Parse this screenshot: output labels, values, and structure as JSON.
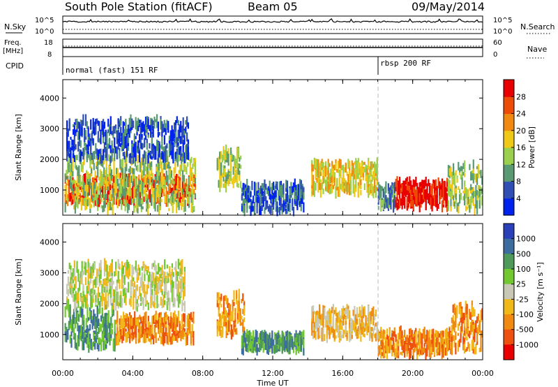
{
  "header": {
    "station": "South Pole Station (fitACF)",
    "beam": "Beam 05",
    "date": "09/May/2014"
  },
  "status_panels": {
    "nsky": {
      "left_label": "N.Sky",
      "right_label": "N.Search",
      "left_ticks": [
        "10^5",
        "10^0"
      ],
      "right_ticks": [
        "10^5",
        "10^0"
      ]
    },
    "freq": {
      "left_label_1": "Freq.",
      "left_label_2": "[MHz]",
      "right_label": "Nave",
      "left_ticks": [
        "18",
        "8"
      ],
      "right_ticks": [
        "60",
        "0"
      ]
    },
    "cpid": {
      "label": "CPID",
      "programs": [
        "normal (fast) 151 RF",
        "rbsp 200 RF"
      ]
    }
  },
  "colors": {
    "power": [
      "#0022ee",
      "#2f4fb4",
      "#5a9a72",
      "#9bd04e",
      "#f0c818",
      "#f08a10",
      "#ee4a08",
      "#e80000"
    ],
    "velocity": [
      "#2a40b8",
      "#3d6c9e",
      "#4f9a5a",
      "#72c830",
      "#c8c8b4",
      "#f0b818",
      "#f08a10",
      "#ee5010",
      "#e80000"
    ]
  },
  "chart_data": [
    {
      "type": "heatmap",
      "ylabel": "Slant Range [km]",
      "ylim": [
        180,
        4600
      ],
      "y_ticks": [
        1000,
        2000,
        3000,
        4000
      ],
      "x_ticks": [
        0,
        4,
        8,
        12,
        16,
        20,
        24
      ],
      "colorbar": {
        "label": "Power [dB]",
        "ticks": [
          4,
          8,
          12,
          16,
          20,
          24,
          28
        ]
      },
      "regions": [
        {
          "t0": 0.1,
          "t1": 7.6,
          "r0": 600,
          "r1": 1450,
          "level": 6
        },
        {
          "t0": 0.1,
          "t1": 7.6,
          "r0": 350,
          "r1": 2100,
          "level": 3
        },
        {
          "t0": 0.2,
          "t1": 7.2,
          "r0": 2000,
          "r1": 3300,
          "level": 1
        },
        {
          "t0": 8.8,
          "t1": 10.2,
          "r0": 1100,
          "r1": 2300,
          "level": 3
        },
        {
          "t0": 10.2,
          "t1": 13.8,
          "r0": 300,
          "r1": 1200,
          "level": 1
        },
        {
          "t0": 14.2,
          "t1": 18.0,
          "r0": 900,
          "r1": 1900,
          "level": 4
        },
        {
          "t0": 18.0,
          "t1": 19.0,
          "r0": 400,
          "r1": 1100,
          "level": 2
        },
        {
          "t0": 19.0,
          "t1": 22.0,
          "r0": 450,
          "r1": 1300,
          "level": 7
        },
        {
          "t0": 22.0,
          "t1": 24.0,
          "r0": 350,
          "r1": 1800,
          "level": 3
        }
      ]
    },
    {
      "type": "heatmap",
      "xlabel": "Time UT",
      "ylabel": "Slant Range [km]",
      "ylim": [
        180,
        4600
      ],
      "y_ticks": [
        1000,
        2000,
        3000,
        4000
      ],
      "x_ticks": [
        0,
        4,
        8,
        12,
        16,
        20,
        24
      ],
      "x_tick_labels": [
        "00:00",
        "04:00",
        "08:00",
        "12:00",
        "16:00",
        "20:00",
        "00:00"
      ],
      "colorbar": {
        "label": "Velocity [m s⁻¹]",
        "ticks": [
          1000,
          500,
          100,
          25,
          -25,
          -100,
          -500,
          -1000
        ]
      },
      "regions": [
        {
          "t0": 0.1,
          "t1": 3.0,
          "r0": 600,
          "r1": 1900,
          "level": 2
        },
        {
          "t0": 3.0,
          "t1": 7.5,
          "r0": 800,
          "r1": 1600,
          "level": 6
        },
        {
          "t0": 0.2,
          "t1": 7.0,
          "r0": 1900,
          "r1": 3300,
          "level": 4
        },
        {
          "t0": 8.8,
          "t1": 10.4,
          "r0": 1000,
          "r1": 2300,
          "level": 6
        },
        {
          "t0": 10.2,
          "t1": 13.8,
          "r0": 500,
          "r1": 1000,
          "level": 2
        },
        {
          "t0": 14.2,
          "t1": 18.0,
          "r0": 900,
          "r1": 1800,
          "level": 5
        },
        {
          "t0": 18.0,
          "t1": 22.2,
          "r0": 350,
          "r1": 1100,
          "level": 6
        },
        {
          "t0": 22.2,
          "t1": 24.0,
          "r0": 450,
          "r1": 1900,
          "level": 6
        }
      ]
    }
  ]
}
